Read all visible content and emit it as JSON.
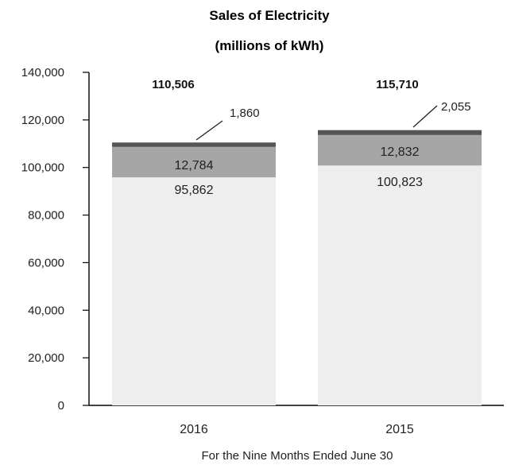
{
  "chart_data": {
    "type": "bar",
    "stacked": true,
    "title": "Sales of Electricity",
    "subtitle": "(millions of kWh)",
    "xlabel": "For the Nine Months Ended June 30",
    "ylabel": "",
    "categories": [
      "2016",
      "2015"
    ],
    "ylim": [
      0,
      140000
    ],
    "y_ticks": [
      "0",
      "20,000",
      "40,000",
      "60,000",
      "80,000",
      "100,000",
      "120,000",
      "140,000"
    ],
    "grid": false,
    "legend": "none",
    "series": [
      {
        "values": [
          95862,
          100823
        ],
        "labels": [
          "95,862",
          "100,823"
        ],
        "color": "#eeeeee"
      },
      {
        "values": [
          12784,
          12832
        ],
        "labels": [
          "12,784",
          "12,832"
        ],
        "color": "#a6a6a6"
      },
      {
        "values": [
          1860,
          2055
        ],
        "labels": [
          "1,860",
          "2,055"
        ],
        "color": "#555555"
      }
    ],
    "totals": [
      "110,506",
      "115,710"
    ]
  }
}
